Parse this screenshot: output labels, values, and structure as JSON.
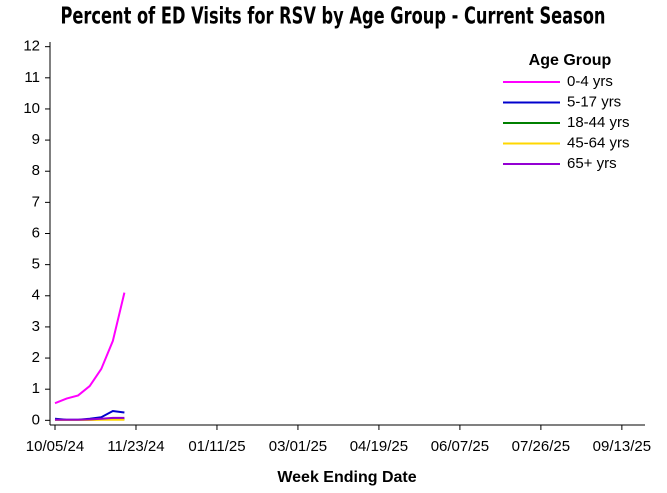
{
  "chart_data": {
    "type": "line",
    "title": "Percent of ED Visits for RSV by Age Group - Current Season",
    "x_label": "Week Ending Date",
    "legend_title": "Age Group",
    "legend_position": "top-right",
    "x": [
      "10/05/24",
      "10/12/24",
      "10/19/24",
      "10/26/24",
      "11/02/24",
      "11/09/24",
      "11/16/24"
    ],
    "series": [
      {
        "name": "0-4 yrs",
        "color": "#ff00ff",
        "values": [
          0.55,
          0.7,
          0.8,
          1.1,
          1.65,
          2.55,
          4.1
        ]
      },
      {
        "name": "5-17 yrs",
        "color": "#0000cd",
        "values": [
          0.05,
          0.02,
          0.02,
          0.05,
          0.1,
          0.3,
          0.25
        ]
      },
      {
        "name": "18-44 yrs",
        "color": "#008000",
        "values": [
          0.02,
          0.01,
          0.01,
          0.02,
          0.03,
          0.04,
          0.04
        ]
      },
      {
        "name": "45-64 yrs",
        "color": "#ffd700",
        "values": [
          0.01,
          0.01,
          0.01,
          0.01,
          0.02,
          0.02,
          0.02
        ]
      },
      {
        "name": "65+ yrs",
        "color": "#9400d3",
        "values": [
          0.02,
          0.02,
          0.02,
          0.03,
          0.05,
          0.08,
          0.08
        ]
      }
    ],
    "xlim": [
      "10/05/24",
      "09/27/25"
    ],
    "xticks": [
      "10/05/24",
      "11/23/24",
      "01/11/25",
      "03/01/25",
      "04/19/25",
      "06/07/25",
      "07/26/25",
      "09/13/25"
    ],
    "ylim": [
      -0.15,
      12.15
    ],
    "yticks": [
      0,
      1,
      2,
      3,
      4,
      5,
      6,
      7,
      8,
      9,
      10,
      11,
      12
    ]
  }
}
